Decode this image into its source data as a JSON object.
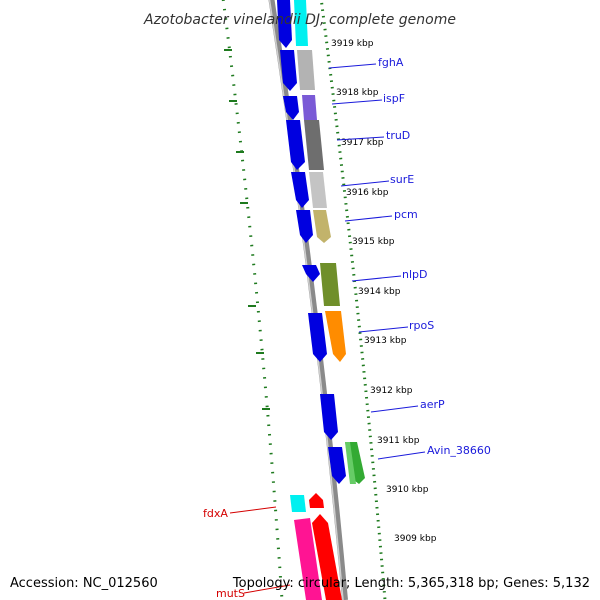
{
  "title": "Azotobacter vinelandii DJ, complete genome",
  "footer": {
    "accession": "Accession: NC_012560",
    "summary": "Topology: circular; Length: 5,365,318 bp; Genes: 5,132"
  },
  "colors": {
    "forward_label": "#1a1adb",
    "reverse_label": "#d40000",
    "backbone": "#8a8a8a",
    "gc_ticks": "#1e7a1e",
    "forward_arrow": "#0000e0"
  },
  "positions": [
    {
      "label": "3919 kbp"
    },
    {
      "label": "3918 kbp"
    },
    {
      "label": "3917 kbp"
    },
    {
      "label": "3916 kbp"
    },
    {
      "label": "3915 kbp"
    },
    {
      "label": "3914 kbp"
    },
    {
      "label": "3913 kbp"
    },
    {
      "label": "3912 kbp"
    },
    {
      "label": "3911 kbp"
    },
    {
      "label": "3910 kbp"
    },
    {
      "label": "3909 kbp"
    }
  ],
  "genes": [
    {
      "name": "fghA",
      "strand": "forward",
      "color": "#b3b3b3"
    },
    {
      "name": "ispF",
      "strand": "forward",
      "color": "#7a5ad6"
    },
    {
      "name": "truD",
      "strand": "forward",
      "color": "#6e6e6e"
    },
    {
      "name": "surE",
      "strand": "forward",
      "color": "#c4c4c4"
    },
    {
      "name": "pcm",
      "strand": "forward",
      "color": "#c2b36b"
    },
    {
      "name": "nlpD",
      "strand": "forward",
      "color": "#6f8f2a"
    },
    {
      "name": "rpoS",
      "strand": "forward",
      "color": "#ff8c00"
    },
    {
      "name": "aerP",
      "strand": "forward",
      "color": "#0000e0"
    },
    {
      "name": "Avin_38660",
      "strand": "forward",
      "color": "#33aa33"
    },
    {
      "name": "fdxA",
      "strand": "reverse",
      "color": "#00f0f0"
    },
    {
      "name": "mutS",
      "strand": "reverse",
      "color": "#ff1493"
    }
  ]
}
